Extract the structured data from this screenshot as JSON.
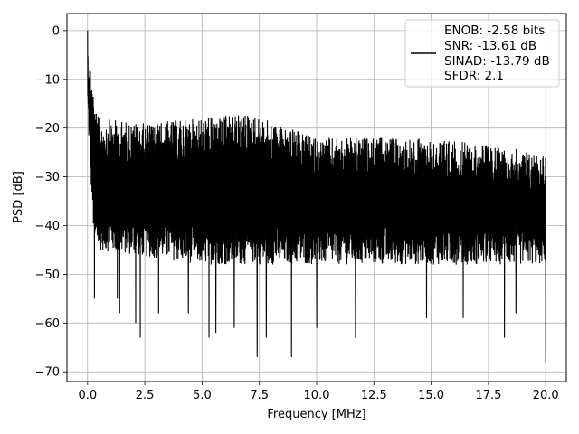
{
  "chart_data": {
    "type": "line",
    "title": "",
    "xlabel": "Frequency [MHz]",
    "ylabel": "PSD [dB]",
    "xlim": [
      -0.9,
      20.9
    ],
    "ylim": [
      -72,
      3.5
    ],
    "xticks": [
      0.0,
      2.5,
      5.0,
      7.5,
      10.0,
      12.5,
      15.0,
      17.5,
      20.0
    ],
    "xtick_labels": [
      "0.0",
      "2.5",
      "5.0",
      "7.5",
      "10.0",
      "12.5",
      "15.0",
      "17.5",
      "20.0"
    ],
    "yticks": [
      0,
      -10,
      -20,
      -30,
      -40,
      -50,
      -60,
      -70
    ],
    "ytick_labels": [
      "0",
      "−10",
      "−20",
      "−30",
      "−40",
      "−50",
      "−60",
      "−70"
    ],
    "grid": true,
    "legend_position": "top-right",
    "legend_entries": [
      "ENOB: -2.58 bits",
      "SNR: -13.61 dB",
      "SINAD: -13.79 dB",
      "SFDR: 2.1"
    ],
    "series_color": "#000000",
    "series": [
      {
        "x_range": [
          0.0,
          20.0
        ],
        "peak": {
          "x": 0.0,
          "y": 0.0
        },
        "noise_upper_envelope": [
          [
            0.1,
            -12
          ],
          [
            0.5,
            -18
          ],
          [
            2.5,
            -19
          ],
          [
            7.0,
            -17
          ],
          [
            10.0,
            -22
          ],
          [
            15.0,
            -22
          ],
          [
            20.0,
            -25
          ]
        ],
        "noise_floor_envelope": [
          [
            0.3,
            -45
          ],
          [
            5.0,
            -48
          ],
          [
            10.0,
            -48
          ],
          [
            15.0,
            -48
          ],
          [
            20.0,
            -48
          ]
        ],
        "dips": [
          {
            "x": 0.3,
            "y": -55
          },
          {
            "x": 1.3,
            "y": -55
          },
          {
            "x": 1.4,
            "y": -58
          },
          {
            "x": 2.1,
            "y": -60
          },
          {
            "x": 2.3,
            "y": -63
          },
          {
            "x": 3.1,
            "y": -58
          },
          {
            "x": 4.4,
            "y": -58
          },
          {
            "x": 5.3,
            "y": -63
          },
          {
            "x": 5.6,
            "y": -62
          },
          {
            "x": 6.4,
            "y": -61
          },
          {
            "x": 7.4,
            "y": -67
          },
          {
            "x": 7.8,
            "y": -63
          },
          {
            "x": 8.9,
            "y": -67
          },
          {
            "x": 10.0,
            "y": -61
          },
          {
            "x": 11.7,
            "y": -63
          },
          {
            "x": 14.8,
            "y": -59
          },
          {
            "x": 16.4,
            "y": -59
          },
          {
            "x": 18.2,
            "y": -63
          },
          {
            "x": 18.7,
            "y": -58
          },
          {
            "x": 20.0,
            "y": -68
          }
        ]
      }
    ]
  }
}
